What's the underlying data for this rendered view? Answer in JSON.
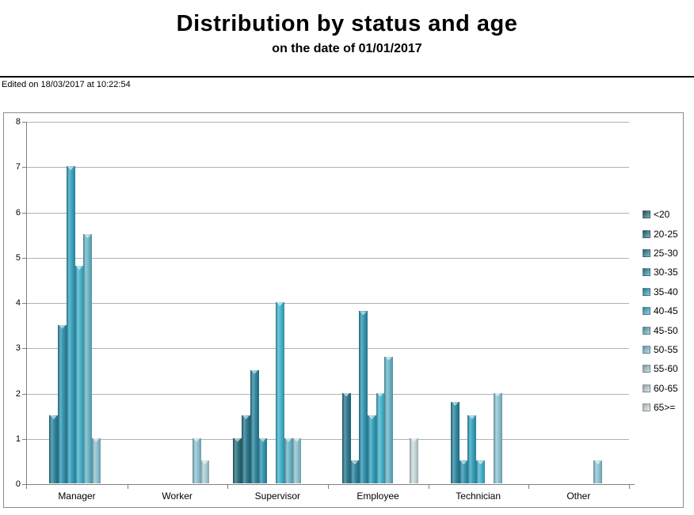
{
  "header": {
    "title": "Distribution by status and age",
    "subtitle": "on the date of 01/01/2017",
    "edited_note": "Edited on 18/03/2017 at 10:22:54"
  },
  "chart_data": {
    "type": "bar",
    "title": "Distribution by status and age",
    "subtitle": "on the date of 01/01/2017",
    "categories": [
      "Manager",
      "Worker",
      "Supervisor",
      "Employee",
      "Technician",
      "Other"
    ],
    "series": [
      {
        "name": "<20",
        "color": "#266b77",
        "values": [
          0,
          0,
          1,
          0,
          0,
          0
        ]
      },
      {
        "name": "20-25",
        "color": "#26758a",
        "values": [
          0,
          0,
          1.5,
          2,
          0,
          0
        ]
      },
      {
        "name": "25-30",
        "color": "#28839c",
        "values": [
          1.5,
          0,
          2.5,
          0.5,
          1.8,
          0
        ]
      },
      {
        "name": "30-35",
        "color": "#2c92ae",
        "values": [
          3.5,
          0,
          1,
          3.8,
          0.5,
          0
        ]
      },
      {
        "name": "35-40",
        "color": "#31a0bc",
        "values": [
          7,
          0,
          0,
          1.5,
          1.5,
          0
        ]
      },
      {
        "name": "40-45",
        "color": "#3eb1ca",
        "values": [
          4.8,
          0,
          4,
          2,
          0.5,
          0
        ]
      },
      {
        "name": "45-50",
        "color": "#66b5c8",
        "values": [
          5.5,
          0,
          1,
          2.8,
          0,
          0
        ]
      },
      {
        "name": "50-55",
        "color": "#8ac2d2",
        "values": [
          1,
          1,
          1,
          0,
          2,
          0.5
        ]
      },
      {
        "name": "55-60",
        "color": "#a8ccd6",
        "values": [
          0,
          0.5,
          0,
          0,
          0,
          0
        ]
      },
      {
        "name": "60-65",
        "color": "#c5d7db",
        "values": [
          0,
          0,
          0,
          1,
          0,
          0
        ]
      },
      {
        "name": "65>=",
        "color": "#dae3e5",
        "values": [
          0,
          0,
          0,
          0,
          0,
          0
        ]
      }
    ],
    "xlabel": "",
    "ylabel": "",
    "ylim": [
      0,
      8
    ],
    "yticks": [
      0,
      1,
      2,
      3,
      4,
      5,
      6,
      7,
      8
    ],
    "grid": true,
    "legend_position": "right"
  }
}
